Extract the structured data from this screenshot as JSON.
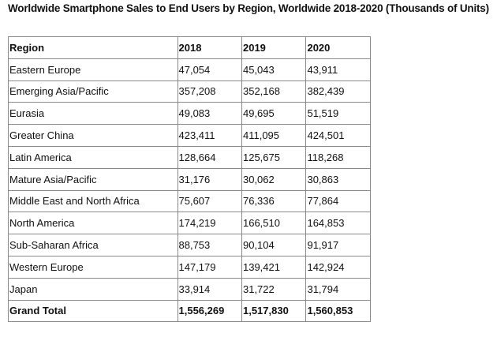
{
  "title": "Worldwide Smartphone Sales to End Users by Region, Worldwide 2018-2020 (Thousands of Units)",
  "table": {
    "headers": [
      "Region",
      "2018",
      "2019",
      "2020"
    ],
    "rows": [
      [
        "Eastern Europe",
        "47,054",
        "45,043",
        "43,911"
      ],
      [
        "Emerging Asia/Pacific",
        "357,208",
        "352,168",
        "382,439"
      ],
      [
        "Eurasia",
        "49,083",
        "49,695",
        "51,519"
      ],
      [
        "Greater China",
        "423,411",
        "411,095",
        "424,501"
      ],
      [
        "Latin America",
        "128,664",
        "125,675",
        "118,268"
      ],
      [
        "Mature Asia/Pacific",
        "31,176",
        "30,062",
        "30,863"
      ],
      [
        "Middle East and North Africa",
        "75,607",
        "76,336",
        "77,864"
      ],
      [
        "North America",
        "174,219",
        "166,510",
        "164,853"
      ],
      [
        "Sub-Saharan Africa",
        "88,753",
        "90,104",
        "91,917"
      ],
      [
        "Western Europe",
        "147,179",
        "139,421",
        "142,924"
      ],
      [
        "Japan",
        "33,914",
        "31,722",
        "31,794"
      ]
    ],
    "total": [
      "Grand Total",
      "1,556,269",
      "1,517,830",
      "1,560,853"
    ]
  }
}
